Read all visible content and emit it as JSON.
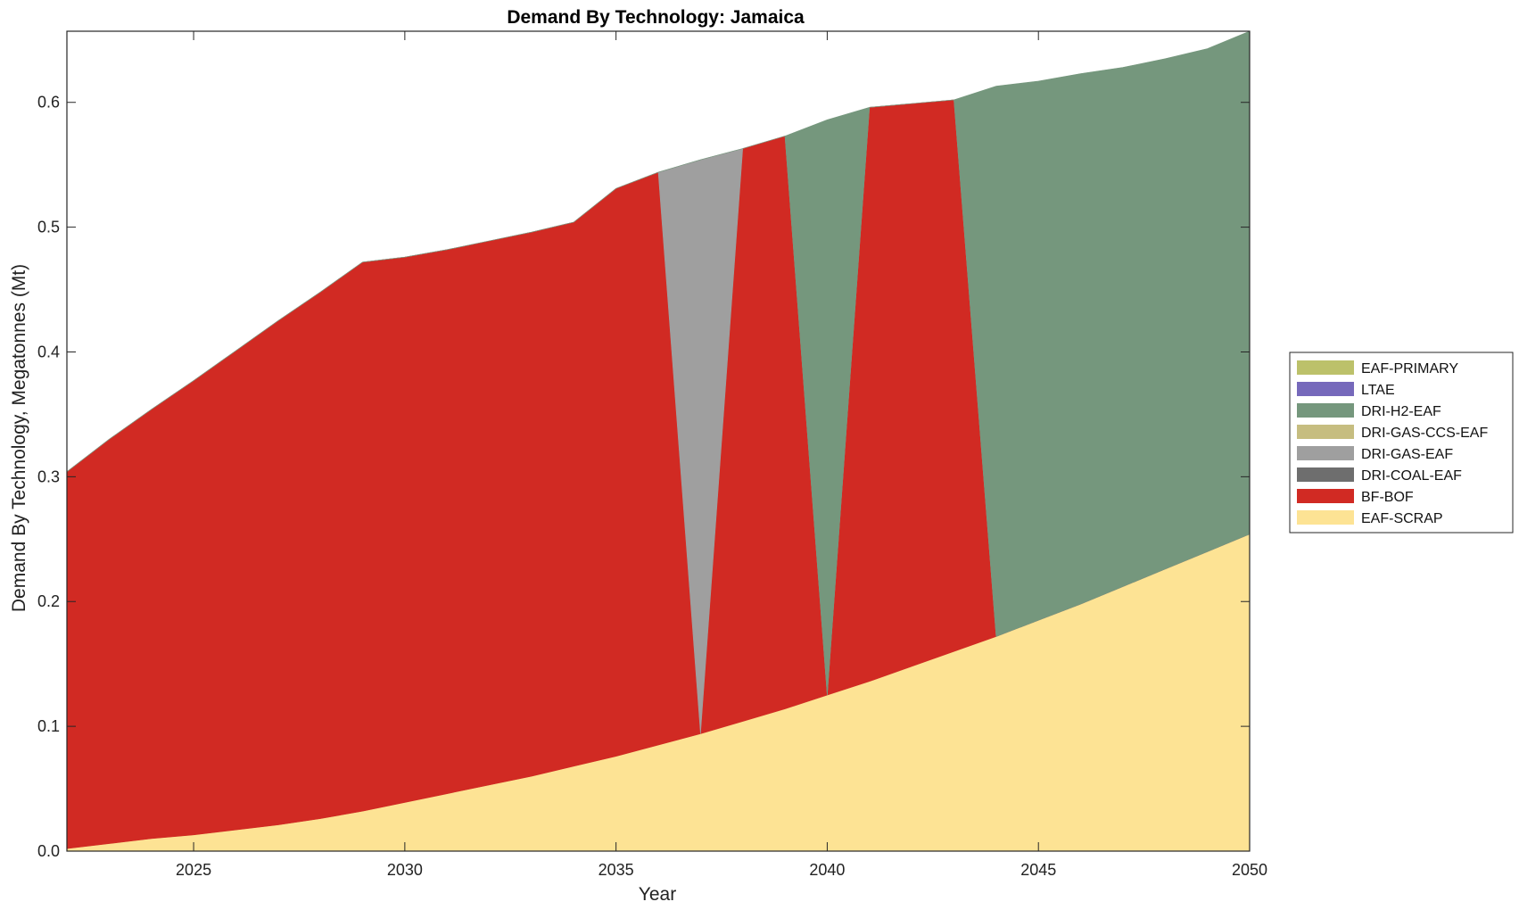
{
  "chart_data": {
    "type": "area",
    "title": "Demand By Technology: Jamaica",
    "xlabel": "Year",
    "ylabel": "Demand By Technology, Megatonnes (Mt)",
    "xlim": [
      2022,
      2050
    ],
    "ylim": [
      0,
      0.657
    ],
    "x_ticks": [
      2025,
      2030,
      2035,
      2040,
      2045,
      2050
    ],
    "y_ticks": [
      0.0,
      0.1,
      0.2,
      0.3,
      0.4,
      0.5,
      0.6
    ],
    "y_tick_labels": [
      "0.0",
      "0.1",
      "0.2",
      "0.3",
      "0.4",
      "0.5",
      "0.6"
    ],
    "stacked": true,
    "grid": false,
    "legend_position": "right",
    "x": [
      2022,
      2023,
      2024,
      2025,
      2026,
      2027,
      2028,
      2029,
      2030,
      2031,
      2032,
      2033,
      2034,
      2035,
      2036,
      2037,
      2038,
      2039,
      2040,
      2041,
      2042,
      2043,
      2044,
      2045,
      2046,
      2047,
      2048,
      2049,
      2050
    ],
    "series": [
      {
        "name": "EAF-SCRAP",
        "color": "#fde394",
        "values": [
          0.002,
          0.006,
          0.01,
          0.013,
          0.017,
          0.021,
          0.026,
          0.032,
          0.039,
          0.046,
          0.053,
          0.06,
          0.068,
          0.076,
          0.085,
          0.094,
          0.104,
          0.114,
          0.125,
          0.136,
          0.148,
          0.16,
          0.172,
          0.185,
          0.198,
          0.212,
          0.226,
          0.24,
          0.254
        ]
      },
      {
        "name": "BF-BOF",
        "color": "#d12a23",
        "values": [
          0.302,
          0.324,
          0.344,
          0.364,
          0.384,
          0.404,
          0.422,
          0.44,
          0.437,
          0.436,
          0.436,
          0.436,
          0.436,
          0.455,
          0.459,
          0.0,
          0.459,
          0.459,
          0.0,
          0.46,
          0.451,
          0.442,
          0.0,
          0.0,
          0.0,
          0.0,
          0.0,
          0.0,
          0.0
        ]
      },
      {
        "name": "DRI-COAL-EAF",
        "color": "#6e6e6e",
        "values": [
          0,
          0,
          0,
          0,
          0,
          0,
          0,
          0,
          0,
          0,
          0,
          0,
          0,
          0,
          0,
          0,
          0,
          0,
          0,
          0,
          0,
          0,
          0,
          0,
          0,
          0,
          0,
          0,
          0
        ]
      },
      {
        "name": "DRI-GAS-EAF",
        "color": "#9f9f9f",
        "values": [
          0,
          0,
          0,
          0,
          0,
          0,
          0,
          0,
          0,
          0,
          0,
          0,
          0,
          0,
          0,
          0.46,
          0,
          0,
          0,
          0,
          0,
          0,
          0,
          0,
          0,
          0,
          0,
          0,
          0
        ]
      },
      {
        "name": "DRI-GAS-CCS-EAF",
        "color": "#c6bd80",
        "values": [
          0,
          0,
          0,
          0,
          0,
          0,
          0,
          0,
          0,
          0,
          0,
          0,
          0,
          0,
          0,
          0,
          0,
          0,
          0,
          0,
          0,
          0,
          0,
          0,
          0,
          0,
          0,
          0,
          0
        ]
      },
      {
        "name": "DRI-H2-EAF",
        "color": "#75977d",
        "values": [
          0,
          0,
          0,
          0,
          0,
          0,
          0,
          0,
          0,
          0,
          0,
          0,
          0,
          0,
          0,
          0,
          0,
          0,
          0.461,
          0,
          0,
          0,
          0.441,
          0.432,
          0.425,
          0.416,
          0.409,
          0.403,
          0.403
        ]
      },
      {
        "name": "LTAE",
        "color": "#7669bb",
        "values": [
          0,
          0,
          0,
          0,
          0,
          0,
          0,
          0,
          0,
          0,
          0,
          0,
          0,
          0,
          0,
          0,
          0,
          0,
          0,
          0,
          0,
          0,
          0,
          0,
          0,
          0,
          0,
          0,
          0
        ]
      },
      {
        "name": "EAF-PRIMARY",
        "color": "#bcc16a",
        "values": [
          0,
          0,
          0,
          0,
          0,
          0,
          0,
          0,
          0,
          0,
          0,
          0,
          0,
          0,
          0,
          0,
          0,
          0,
          0,
          0,
          0,
          0,
          0,
          0,
          0,
          0,
          0,
          0,
          0
        ]
      }
    ],
    "legend_order": [
      "EAF-PRIMARY",
      "LTAE",
      "DRI-H2-EAF",
      "DRI-GAS-CCS-EAF",
      "DRI-GAS-EAF",
      "DRI-COAL-EAF",
      "BF-BOF",
      "EAF-SCRAP"
    ]
  }
}
